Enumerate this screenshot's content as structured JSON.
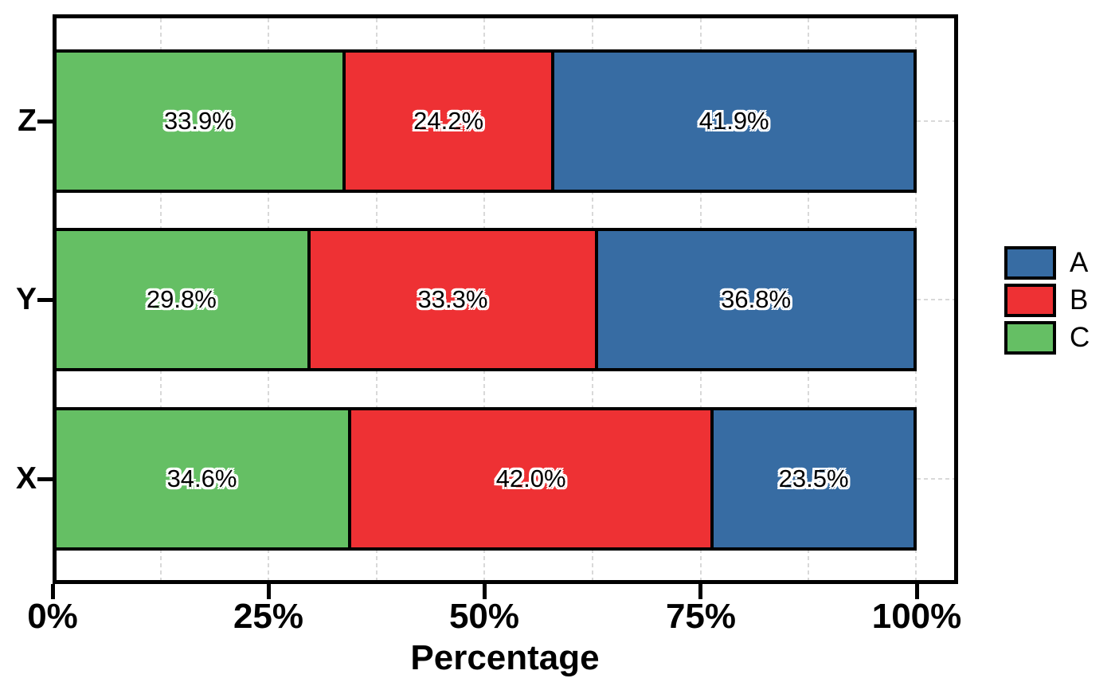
{
  "chart_data": {
    "type": "bar",
    "orientation": "horizontal",
    "stacked": true,
    "title": "",
    "xlabel": "Percentage",
    "ylabel": "",
    "xlim": [
      0,
      104.8
    ],
    "xticks": [
      0,
      25,
      50,
      75,
      100
    ],
    "xtick_labels": [
      "0%",
      "25%",
      "50%",
      "75%",
      "100%"
    ],
    "categories_top_to_bottom": [
      "Z",
      "Y",
      "X"
    ],
    "segment_order_left_to_right": [
      "C",
      "B",
      "A"
    ],
    "series": [
      {
        "name": "A",
        "color": "#376CA3",
        "values": {
          "Z": 41.9,
          "Y": 36.8,
          "X": 23.5
        }
      },
      {
        "name": "B",
        "color": "#EE3134",
        "values": {
          "Z": 24.2,
          "Y": 33.3,
          "X": 42.0
        }
      },
      {
        "name": "C",
        "color": "#65BF64",
        "values": {
          "Z": 33.9,
          "Y": 29.8,
          "X": 34.6
        }
      }
    ],
    "bar_labels": {
      "Z": [
        "33.9%",
        "24.2%",
        "41.9%"
      ],
      "Y": [
        "29.8%",
        "33.3%",
        "36.8%"
      ],
      "X": [
        "34.6%",
        "42.0%",
        "23.5%"
      ]
    },
    "grid": {
      "x_major_step": 25,
      "x_minor_step": 12.5,
      "y_lines": "category_centers",
      "style": "dashed",
      "color": "#D9D9D9"
    },
    "legend_position": "center right",
    "background": "#FFFFFF"
  },
  "axis": {
    "xlabel": "Percentage",
    "xtick_labels": [
      "0%",
      "25%",
      "50%",
      "75%",
      "100%"
    ],
    "ytick_labels": [
      "Z",
      "Y",
      "X"
    ]
  },
  "legend": {
    "items": [
      {
        "label": "A",
        "color": "#376CA3"
      },
      {
        "label": "B",
        "color": "#EE3134"
      },
      {
        "label": "C",
        "color": "#65BF64"
      }
    ]
  },
  "rows": [
    {
      "name": "Z",
      "segments": [
        {
          "series": "C",
          "value": 33.9,
          "label": "33.9%",
          "color": "#65BF64"
        },
        {
          "series": "B",
          "value": 24.2,
          "label": "24.2%",
          "color": "#EE3134"
        },
        {
          "series": "A",
          "value": 41.9,
          "label": "41.9%",
          "color": "#376CA3"
        }
      ]
    },
    {
      "name": "Y",
      "segments": [
        {
          "series": "C",
          "value": 29.8,
          "label": "29.8%",
          "color": "#65BF64"
        },
        {
          "series": "B",
          "value": 33.3,
          "label": "33.3%",
          "color": "#EE3134"
        },
        {
          "series": "A",
          "value": 36.8,
          "label": "36.8%",
          "color": "#376CA3"
        }
      ]
    },
    {
      "name": "X",
      "segments": [
        {
          "series": "C",
          "value": 34.6,
          "label": "34.6%",
          "color": "#65BF64"
        },
        {
          "series": "B",
          "value": 42.0,
          "label": "42.0%",
          "color": "#EE3134"
        },
        {
          "series": "A",
          "value": 23.5,
          "label": "23.5%",
          "color": "#376CA3"
        }
      ]
    }
  ],
  "style": {
    "bar_edge_color": "#000000",
    "grid_color": "#D9D9D9",
    "text_color": "#000000",
    "bar_label_outline": "#FFFFFF",
    "background": "#FFFFFF"
  }
}
